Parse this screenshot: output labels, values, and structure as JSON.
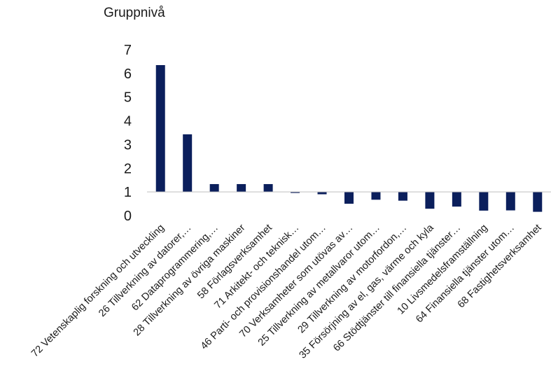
{
  "chart_data": {
    "type": "bar",
    "title": "Gruppnivå",
    "xlabel": "",
    "ylabel": "",
    "ylim": [
      0,
      7
    ],
    "yticks": [
      0,
      1,
      2,
      3,
      4,
      5,
      6,
      7
    ],
    "baseline": 1,
    "grid": false,
    "legend": "none",
    "bar_color": "#0b1f5c",
    "categories": [
      "72 Vetenskaplig forskning och utveckling",
      "26 Tillverkning av datorer,…",
      "62 Dataprogrammering,…",
      "28 Tillverkning av övriga maskiner",
      "58 Förlagsverksamhet",
      "71 Arkitekt- och teknisk…",
      "46 Parti- och provisionshandel utom…",
      "70 Verksamheter som utövas av…",
      "25 Tillverkning av metallvaror utom…",
      "29 Tillverkning av motorfordon,…",
      "35 Försörjning av el, gas, värme och kyla",
      "66 Stödtjänster till finansiella tjänster…",
      "10 Livsmedelsframställning",
      "64 Finansiella tjänster utom…",
      "68 Fastighetsverksamhet"
    ],
    "values": [
      6.35,
      3.43,
      1.33,
      1.33,
      1.33,
      0.96,
      0.9,
      0.5,
      0.67,
      0.63,
      0.29,
      0.38,
      0.21,
      0.22,
      0.16
    ]
  }
}
